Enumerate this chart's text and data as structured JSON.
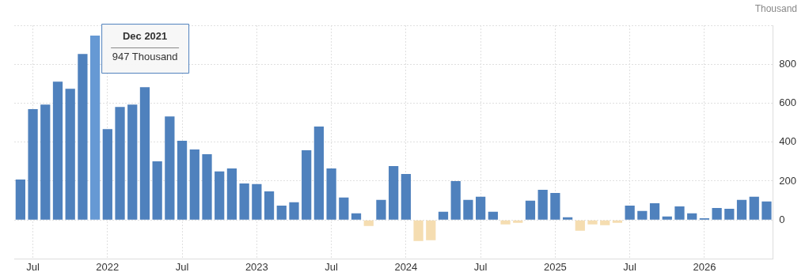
{
  "chart_data": {
    "type": "bar",
    "ylabel": "Thousand",
    "categories": [
      null,
      "Jul",
      null,
      null,
      null,
      null,
      null,
      "2022",
      null,
      null,
      null,
      null,
      null,
      "Jul",
      null,
      null,
      null,
      null,
      null,
      "2023",
      null,
      null,
      null,
      null,
      null,
      "Jul",
      null,
      null,
      null,
      null,
      null,
      "2024",
      null,
      null,
      null,
      null,
      null,
      "Jul",
      null,
      null,
      null,
      null,
      null,
      "2025",
      null,
      null,
      null,
      null,
      null,
      "Jul",
      null,
      null,
      null,
      null,
      null,
      "2026",
      null,
      null,
      null,
      null,
      null
    ],
    "values": [
      208,
      569,
      593,
      711,
      674,
      853,
      947,
      467,
      581,
      593,
      682,
      301,
      532,
      407,
      362,
      338,
      249,
      265,
      188,
      184,
      147,
      74,
      91,
      358,
      480,
      265,
      115,
      34,
      -31,
      103,
      277,
      236,
      -108,
      -104,
      42,
      200,
      103,
      119,
      42,
      -23,
      -15,
      99,
      155,
      139,
      14,
      -55,
      -23,
      -27,
      -15,
      74,
      46,
      86,
      18,
      70,
      34,
      9,
      62,
      58,
      103,
      119,
      95
    ],
    "colors": [
      "#4f81bd",
      "#4f81bd",
      "#4f81bd",
      "#4f81bd",
      "#4f81bd",
      "#4f81bd",
      "#6699d4",
      "#4f81bd",
      "#4f81bd",
      "#4f81bd",
      "#4f81bd",
      "#4f81bd",
      "#4f81bd",
      "#4f81bd",
      "#4f81bd",
      "#4f81bd",
      "#4f81bd",
      "#4f81bd",
      "#4f81bd",
      "#4f81bd",
      "#4f81bd",
      "#4f81bd",
      "#4f81bd",
      "#4f81bd",
      "#4f81bd",
      "#4f81bd",
      "#4f81bd",
      "#4f81bd",
      "#f5ddb1",
      "#4f81bd",
      "#4f81bd",
      "#4f81bd",
      "#f5ddb1",
      "#f5ddb1",
      "#4f81bd",
      "#4f81bd",
      "#4f81bd",
      "#4f81bd",
      "#4f81bd",
      "#f5ddb1",
      "#f5ddb1",
      "#4f81bd",
      "#4f81bd",
      "#4f81bd",
      "#4f81bd",
      "#f5ddb1",
      "#f5ddb1",
      "#f5ddb1",
      "#f5ddb1",
      "#4f81bd",
      "#4f81bd",
      "#4f81bd",
      "#4f81bd",
      "#4f81bd",
      "#4f81bd",
      "#4f81bd",
      "#4f81bd",
      "#4f81bd",
      "#4f81bd",
      "#4f81bd",
      "#4f81bd"
    ],
    "ylim": [
      -200,
      1000
    ],
    "yticks": [
      0,
      200,
      400,
      600,
      800,
      {
        "value": 1000,
        "label": null
      }
    ],
    "grid": true,
    "legend": false,
    "annotations": [
      "Dec 2021",
      "947 Thousand"
    ]
  }
}
